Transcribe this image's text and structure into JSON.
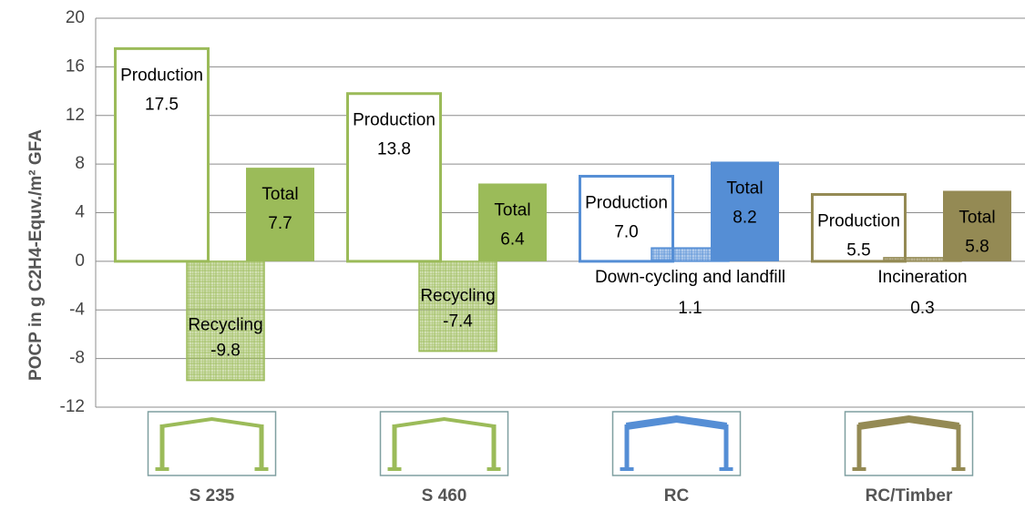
{
  "chart_data": {
    "type": "bar",
    "y_label": "POCP in g C2H4-Equv./m² GFA",
    "categories": [
      "S 235",
      "S 460",
      "RC",
      "RC/Timber"
    ],
    "colors": [
      "#9bbb59",
      "#9bbb59",
      "#558ed5",
      "#948a54"
    ],
    "series": [
      {
        "name": "Production",
        "style": "outline",
        "values": [
          17.5,
          13.8,
          7.0,
          5.5
        ],
        "value_labels": [
          "17.5",
          "13.8",
          "7.0",
          "5.5"
        ]
      },
      {
        "style": "hatched",
        "labels": [
          "Recycling",
          "Recycling",
          "Down-cycling and landfill",
          "Incineration"
        ],
        "values": [
          -9.8,
          -7.4,
          1.1,
          0.3
        ],
        "value_labels": [
          "-9.8",
          "-7.4",
          "1.1",
          "0.3"
        ]
      },
      {
        "name": "Total",
        "style": "filled",
        "values": [
          7.7,
          6.4,
          8.2,
          5.8
        ],
        "value_labels": [
          "7.7",
          "6.4",
          "8.2",
          "5.8"
        ]
      }
    ],
    "ylim": [
      -12,
      20
    ],
    "yticks": [
      -12,
      -8,
      -4,
      0,
      4,
      8,
      12,
      16,
      20
    ],
    "grid": true
  }
}
